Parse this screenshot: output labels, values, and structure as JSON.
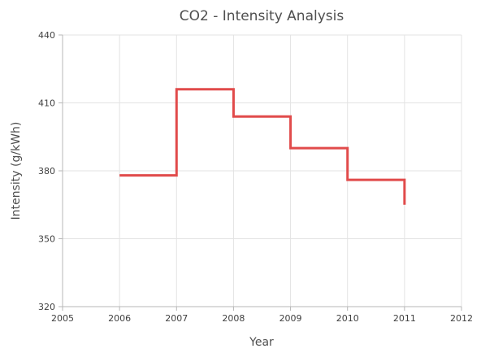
{
  "chart_data": {
    "type": "line",
    "line_style": "step",
    "title": "CO2 - Intensity Analysis",
    "xlabel": "Year",
    "ylabel": "Intensity (g/kWh)",
    "xlim": [
      2005,
      2012
    ],
    "ylim": [
      320,
      440
    ],
    "x_ticks": [
      "2005",
      "2006",
      "2007",
      "2008",
      "2009",
      "2010",
      "2011",
      "2012"
    ],
    "y_ticks": [
      "320",
      "350",
      "380",
      "410",
      "440"
    ],
    "grid": true,
    "legend": "none",
    "series": [
      {
        "color": "#e14b4b",
        "points": [
          {
            "x": 2006,
            "y": 378
          },
          {
            "x": 2007,
            "y": 416
          },
          {
            "x": 2008,
            "y": 404
          },
          {
            "x": 2009,
            "y": 390
          },
          {
            "x": 2010,
            "y": 376
          },
          {
            "x": 2011,
            "y": 365
          }
        ]
      }
    ]
  }
}
